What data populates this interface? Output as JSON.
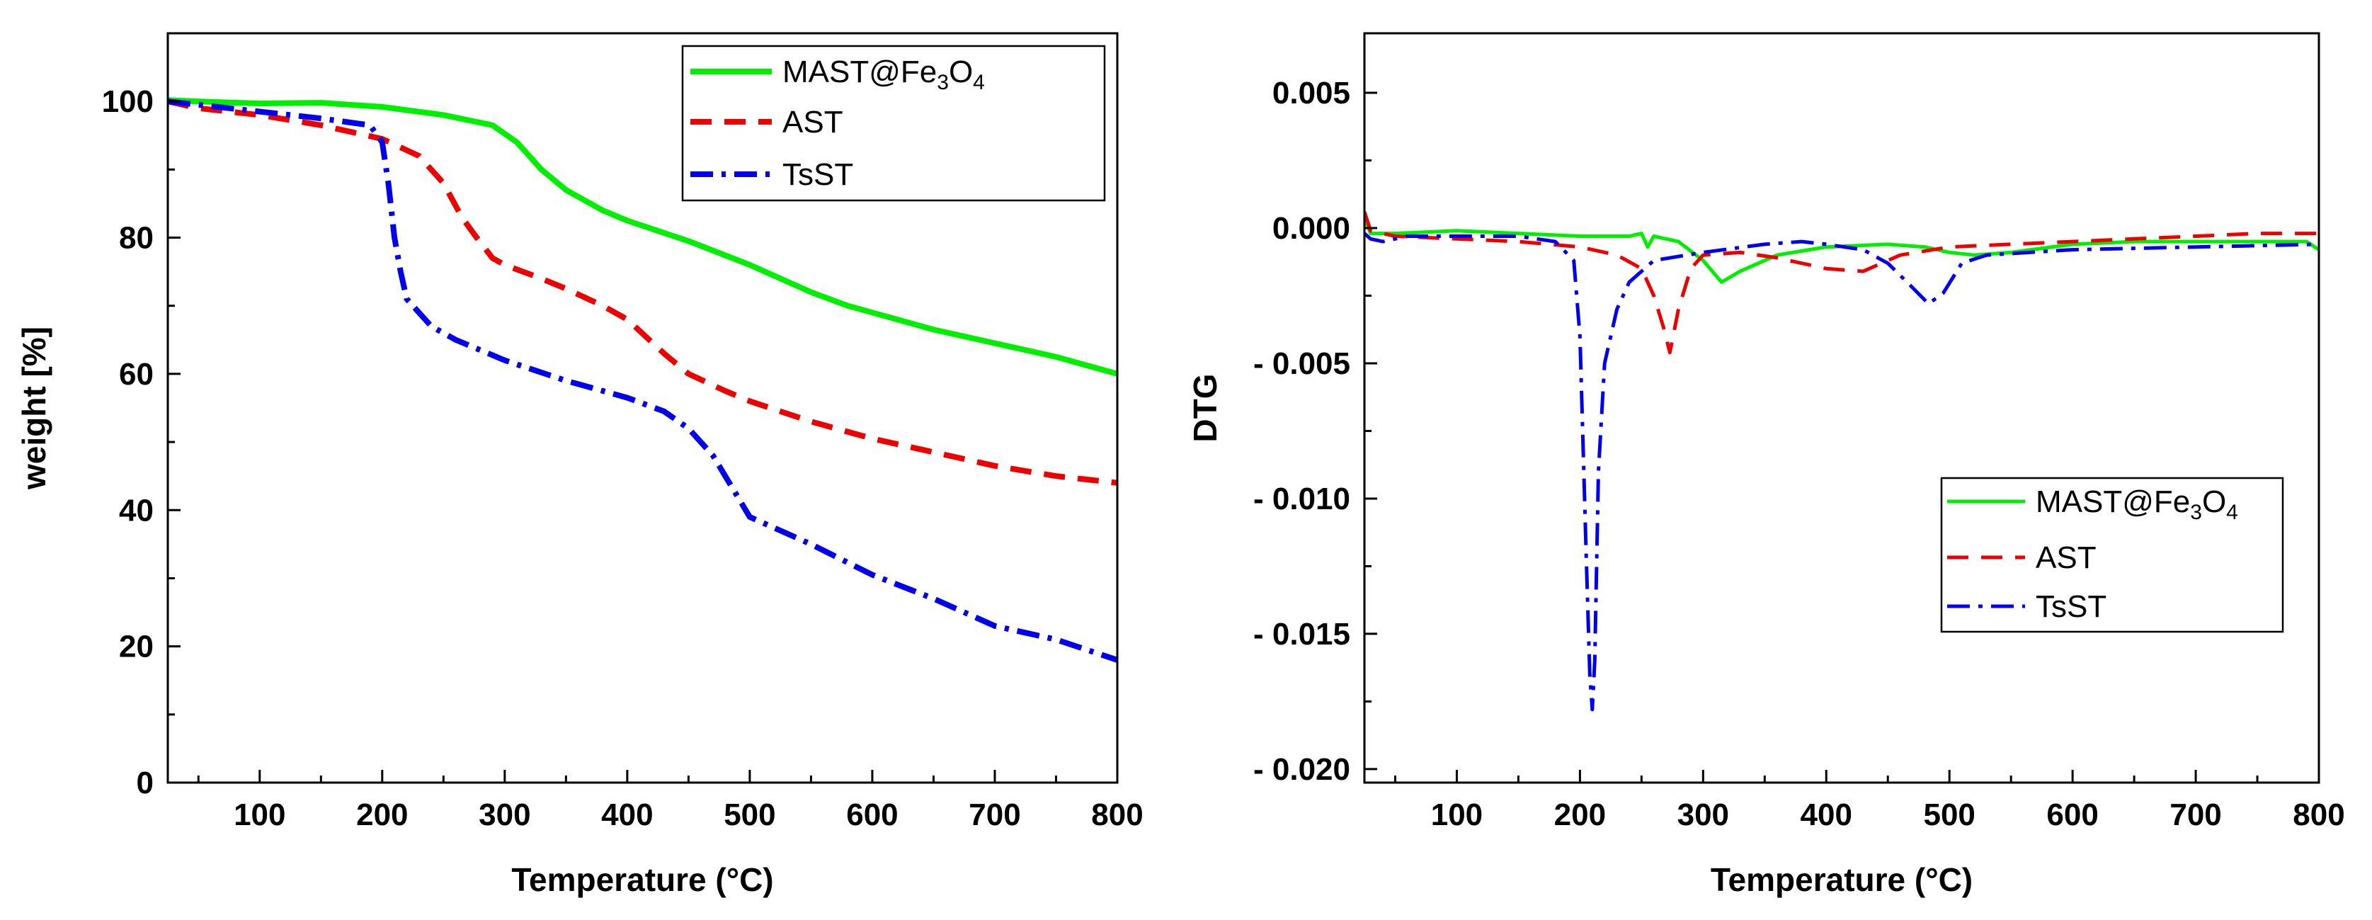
{
  "colors": {
    "mast": "#00ee00",
    "ast": "#ee0000",
    "tsst": "#0000ee",
    "axis": "#000000"
  },
  "chart_data": [
    {
      "type": "line",
      "xlabel": "Temperature (°C)",
      "ylabel": "weight [%]",
      "xlim": [
        25,
        800
      ],
      "ylim": [
        0,
        110
      ],
      "xticks": [
        100,
        200,
        300,
        400,
        500,
        600,
        700,
        800
      ],
      "yticks": [
        0,
        20,
        40,
        60,
        80,
        100
      ],
      "xtick_labels": [
        "100",
        "200",
        "300",
        "400",
        "500",
        "600",
        "700",
        "800"
      ],
      "ytick_labels": [
        "0",
        "20",
        "40",
        "60",
        "80",
        "100"
      ],
      "legend_position": "top-right",
      "legend": [
        {
          "name": "MAST@Fe3O4",
          "base": "MAST@Fe",
          "sub1": "3",
          "mid": "O",
          "sub2": "4"
        },
        {
          "name": "AST"
        },
        {
          "name": "TsST"
        }
      ],
      "series": [
        {
          "name": "MAST@Fe3O4",
          "style": "solid",
          "color_key": "mast",
          "x": [
            25,
            50,
            100,
            150,
            200,
            250,
            290,
            310,
            330,
            350,
            380,
            400,
            450,
            500,
            550,
            580,
            600,
            650,
            700,
            750,
            800
          ],
          "y": [
            100.2,
            100,
            99.7,
            99.8,
            99.2,
            98,
            96.5,
            94,
            90,
            87,
            84,
            82.5,
            79.5,
            76,
            72,
            70,
            69,
            66.5,
            64.5,
            62.5,
            60
          ]
        },
        {
          "name": "AST",
          "style": "dashed",
          "color_key": "ast",
          "x": [
            25,
            50,
            100,
            150,
            200,
            230,
            250,
            265,
            275,
            290,
            300,
            330,
            350,
            380,
            400,
            430,
            450,
            480,
            500,
            550,
            600,
            650,
            700,
            750,
            800
          ],
          "y": [
            100,
            99,
            98,
            96.5,
            94.5,
            92,
            88,
            83,
            80.5,
            77,
            76,
            74,
            72.5,
            70,
            68,
            63,
            60,
            57.5,
            56,
            53,
            50.5,
            48.5,
            46.5,
            45,
            44
          ]
        },
        {
          "name": "TsST",
          "style": "dashdot",
          "color_key": "tsst",
          "x": [
            25,
            50,
            100,
            150,
            190,
            200,
            205,
            210,
            215,
            220,
            240,
            260,
            300,
            350,
            400,
            430,
            450,
            470,
            490,
            500,
            550,
            600,
            650,
            700,
            750,
            800
          ],
          "y": [
            100,
            99.5,
            98.5,
            97.5,
            96.5,
            94,
            88,
            80,
            75,
            71,
            67,
            65,
            62,
            59,
            56.5,
            54.5,
            52,
            48,
            42,
            39,
            35,
            30.5,
            27,
            23,
            21,
            18
          ]
        }
      ]
    },
    {
      "type": "line",
      "xlabel": "Temperature (°C)",
      "ylabel": "DTG",
      "xlim": [
        25,
        800
      ],
      "ylim": [
        -0.0205,
        0.0072
      ],
      "xticks": [
        100,
        200,
        300,
        400,
        500,
        600,
        700,
        800
      ],
      "yticks": [
        0.005,
        0.0,
        -0.005,
        -0.01,
        -0.015,
        -0.02
      ],
      "xtick_labels": [
        "100",
        "200",
        "300",
        "400",
        "500",
        "600",
        "700",
        "800"
      ],
      "ytick_labels": [
        "0.005",
        "0.000",
        "- 0.005",
        "- 0.010",
        "- 0.015",
        "- 0.020"
      ],
      "legend_position": "center-right",
      "legend": [
        {
          "name": "MAST@Fe3O4",
          "base": "MAST@Fe",
          "sub1": "3",
          "mid": "O",
          "sub2": "4"
        },
        {
          "name": "AST"
        },
        {
          "name": "TsST"
        }
      ],
      "series": [
        {
          "name": "MAST@Fe3O4",
          "style": "solid",
          "color_key": "mast",
          "x": [
            25,
            30,
            50,
            100,
            150,
            200,
            240,
            250,
            255,
            260,
            280,
            300,
            315,
            330,
            360,
            400,
            450,
            480,
            500,
            520,
            550,
            600,
            650,
            700,
            750,
            790,
            800
          ],
          "y": [
            0.0004,
            -0.0002,
            -0.0002,
            -0.0001,
            -0.0002,
            -0.0003,
            -0.0003,
            -0.0002,
            -0.0007,
            -0.0003,
            -0.0005,
            -0.0012,
            -0.002,
            -0.0016,
            -0.001,
            -0.0007,
            -0.0006,
            -0.0007,
            -0.0009,
            -0.001,
            -0.0009,
            -0.0006,
            -0.0005,
            -0.0005,
            -0.0005,
            -0.0005,
            -0.0008
          ]
        },
        {
          "name": "AST",
          "style": "dashed",
          "color_key": "ast",
          "x": [
            25,
            30,
            50,
            100,
            150,
            200,
            230,
            250,
            260,
            268,
            273,
            280,
            290,
            300,
            330,
            360,
            400,
            430,
            460,
            500,
            550,
            600,
            650,
            700,
            750,
            800
          ],
          "y": [
            0.0006,
            -0.0001,
            -0.0003,
            -0.0004,
            -0.0005,
            -0.0007,
            -0.001,
            -0.0015,
            -0.0025,
            -0.0037,
            -0.0046,
            -0.003,
            -0.0015,
            -0.001,
            -0.0009,
            -0.0011,
            -0.0015,
            -0.0016,
            -0.001,
            -0.0007,
            -0.0006,
            -0.0005,
            -0.0004,
            -0.0003,
            -0.0002,
            -0.0002
          ]
        },
        {
          "name": "TsST",
          "style": "dashdot",
          "color_key": "tsst",
          "x": [
            25,
            30,
            40,
            60,
            100,
            150,
            180,
            195,
            200,
            205,
            208,
            210,
            212,
            215,
            220,
            230,
            240,
            260,
            300,
            350,
            380,
            400,
            430,
            450,
            470,
            483,
            495,
            510,
            530,
            600,
            700,
            800
          ],
          "y": [
            -0.0002,
            -0.0004,
            -0.0005,
            -0.0003,
            -0.0003,
            -0.0003,
            -0.0005,
            -0.0012,
            -0.004,
            -0.012,
            -0.0165,
            -0.0178,
            -0.016,
            -0.009,
            -0.005,
            -0.003,
            -0.002,
            -0.0012,
            -0.0009,
            -0.0006,
            -0.0005,
            -0.0006,
            -0.0008,
            -0.0013,
            -0.0022,
            -0.0028,
            -0.0024,
            -0.0013,
            -0.001,
            -0.0008,
            -0.0007,
            -0.0006
          ]
        }
      ]
    }
  ]
}
